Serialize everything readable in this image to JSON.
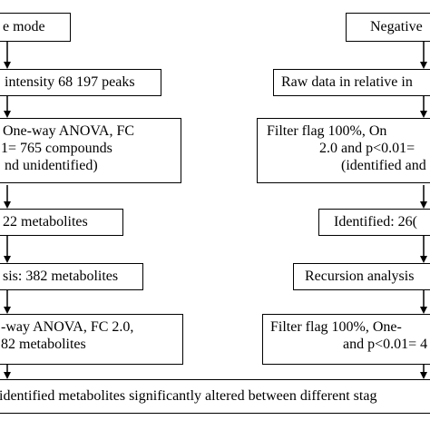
{
  "left": {
    "mode_header": "e mode",
    "step1": [
      "intensity 68 197 peaks"
    ],
    "step2": [
      "One-way ANOVA, FC",
      "1= 765 compounds",
      "nd unidentified)"
    ],
    "step3": [
      "22 metabolites"
    ],
    "step4": [
      "sis: 382 metabolites"
    ],
    "step5": [
      "-way ANOVA, FC 2.0,",
      "82 metabolites"
    ]
  },
  "right": {
    "mode_header": "Negative",
    "step1": [
      "Raw data in relative in"
    ],
    "step2": [
      "Filter flag 100%, On",
      "2.0 and p<0.01=",
      "(identified and"
    ],
    "step3": [
      "Identified: 26("
    ],
    "step4": [
      "Recursion analysis"
    ],
    "step5": [
      "Filter flag 100%, One-",
      "and p<0.01= 4"
    ]
  },
  "result": "identified metabolites significantly altered between different stag"
}
